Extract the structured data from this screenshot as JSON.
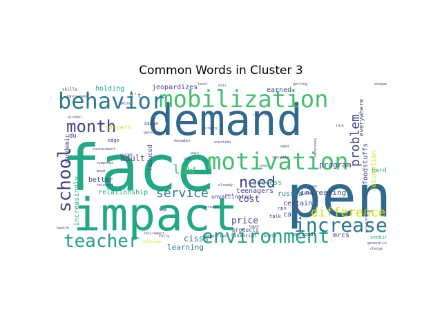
{
  "figure": {
    "title": "Common Words in Cluster 3"
  },
  "palette": {
    "navy": "#414487",
    "blue": "#2a788e",
    "teal": "#22a884",
    "green": "#44bf70",
    "lime": "#7ad151",
    "yellow": "#d2e21b",
    "purple": "#482878",
    "dark": "#440154",
    "mid": "#31688e",
    "aqua": "#1f9e89"
  },
  "words": [
    {
      "text": "face",
      "color": "teal",
      "size": 92,
      "rotate": 0
    },
    {
      "text": "demand",
      "color": "mid",
      "size": 62,
      "rotate": 0
    },
    {
      "text": "impact",
      "color": "teal",
      "size": 66,
      "rotate": 0
    },
    {
      "text": "pen",
      "color": "mid",
      "size": 84,
      "rotate": 0
    },
    {
      "text": "mobilization",
      "color": "green",
      "size": 34,
      "rotate": 0
    },
    {
      "text": "behavior",
      "color": "blue",
      "size": 32,
      "rotate": 0
    },
    {
      "text": "motivation",
      "color": "green",
      "size": 34,
      "rotate": 0
    },
    {
      "text": "environment",
      "color": "teal",
      "size": 28,
      "rotate": 0
    },
    {
      "text": "increase",
      "color": "blue",
      "size": 28,
      "rotate": 0
    },
    {
      "text": "teacher",
      "color": "aqua",
      "size": 26,
      "rotate": 0
    },
    {
      "text": "school",
      "color": "navy",
      "size": 26,
      "rotate": -90
    },
    {
      "text": "month",
      "color": "navy",
      "size": 24,
      "rotate": 0
    },
    {
      "text": "need",
      "color": "navy",
      "size": 22,
      "rotate": 0
    },
    {
      "text": "difference",
      "color": "yellow",
      "size": 18,
      "rotate": 0
    },
    {
      "text": "problem",
      "color": "navy",
      "size": 18,
      "rotate": -90
    },
    {
      "text": "service",
      "color": "blue",
      "size": 18,
      "rotate": 0
    },
    {
      "text": "low",
      "color": "green",
      "size": 18,
      "rotate": 0
    },
    {
      "text": "cost",
      "color": "navy",
      "size": 13,
      "rotate": 0
    },
    {
      "text": "price",
      "color": "navy",
      "size": 13,
      "rotate": 0
    },
    {
      "text": "cisss",
      "color": "blue",
      "size": 12,
      "rotate": 0
    },
    {
      "text": "learning",
      "color": "blue",
      "size": 11,
      "rotate": 0
    },
    {
      "text": "program",
      "color": "navy",
      "size": 11,
      "rotate": 0
    },
    {
      "text": "increasing",
      "color": "navy",
      "size": 11,
      "rotate": 0
    },
    {
      "text": "certain",
      "color": "navy",
      "size": 10,
      "rotate": 0
    },
    {
      "text": "russia",
      "color": "blue",
      "size": 10,
      "rotate": 0
    },
    {
      "text": "teenagers",
      "color": "navy",
      "size": 10,
      "rotate": 0
    },
    {
      "text": "success",
      "color": "teal",
      "size": 10,
      "rotate": 0
    },
    {
      "text": "adult",
      "color": "navy",
      "size": 12,
      "rotate": 0
    },
    {
      "text": "better",
      "color": "navy",
      "size": 10,
      "rotate": 0
    },
    {
      "text": "relationship",
      "color": "teal",
      "size": 10,
      "rotate": 0
    },
    {
      "text": "holding",
      "color": "teal",
      "size": 10,
      "rotate": 0
    },
    {
      "text": "jeopardizes",
      "color": "navy",
      "size": 10,
      "rotate": 0
    },
    {
      "text": "earned",
      "color": "navy",
      "size": 10,
      "rotate": 0
    },
    {
      "text": "mrcs",
      "color": "navy",
      "size": 10,
      "rotate": 0
    },
    {
      "text": "resumption",
      "color": "yellow",
      "size": 10,
      "rotate": -90
    },
    {
      "text": "foodstuffs",
      "color": "navy",
      "size": 10,
      "rotate": -90
    },
    {
      "text": "everywhere",
      "color": "navy",
      "size": 9,
      "rotate": -90
    },
    {
      "text": "harder",
      "color": "teal",
      "size": 9,
      "rotate": 0
    },
    {
      "text": "increasingly",
      "color": "teal",
      "size": 10,
      "rotate": -90
    },
    {
      "text": "pandemic",
      "color": "navy",
      "size": 9,
      "rotate": -90
    },
    {
      "text": "concern",
      "color": "yellow",
      "size": 9,
      "rotate": 0
    },
    {
      "text": "reduced",
      "color": "navy",
      "size": 9,
      "rotate": -90
    },
    {
      "text": "unvaccinated",
      "color": "navy",
      "size": 8,
      "rotate": 0
    },
    {
      "text": "products",
      "color": "navy",
      "size": 8,
      "rotate": 0
    },
    {
      "text": "talk",
      "color": "navy",
      "size": 7,
      "rotate": 0
    },
    {
      "text": "personal",
      "color": "navy",
      "size": 7,
      "rotate": 0
    },
    {
      "text": "seeking",
      "color": "teal",
      "size": 7,
      "rotate": 0
    },
    {
      "text": "financial",
      "color": "navy",
      "size": 7,
      "rotate": 0
    },
    {
      "text": "expertise",
      "color": "navy",
      "size": 6,
      "rotate": 0
    },
    {
      "text": "sûreté",
      "color": "navy",
      "size": 6,
      "rotate": 0
    },
    {
      "text": "npo",
      "color": "navy",
      "size": 7,
      "rotate": 0
    },
    {
      "text": "ca",
      "color": "navy",
      "size": 10,
      "rotate": 0
    },
    {
      "text": "du",
      "color": "navy",
      "size": 9,
      "rotate": 0
    },
    {
      "text": "n't",
      "color": "navy",
      "size": 9,
      "rotate": 0
    },
    {
      "text": "image",
      "color": "navy",
      "size": 7,
      "rotate": 0
    },
    {
      "text": "edge",
      "color": "navy",
      "size": 7,
      "rotate": 0
    },
    {
      "text": "skills",
      "color": "navy",
      "size": 6,
      "rotate": 0
    },
    {
      "text": "improvement",
      "color": "navy",
      "size": 5,
      "rotate": 0
    },
    {
      "text": "taking",
      "color": "navy",
      "size": 5,
      "rotate": 0
    },
    {
      "text": "alcohol",
      "color": "navy",
      "size": 5,
      "rotate": 0
    },
    {
      "text": "gasoline",
      "color": "navy",
      "size": 5,
      "rotate": 0
    },
    {
      "text": "containment",
      "color": "navy",
      "size": 5,
      "rotate": 0
    },
    {
      "text": "europe",
      "color": "navy",
      "size": 5,
      "rotate": 0
    },
    {
      "text": "symptoms",
      "color": "navy",
      "size": 5,
      "rotate": 0
    },
    {
      "text": "mood",
      "color": "navy",
      "size": 5,
      "rotate": 0
    },
    {
      "text": "relevant",
      "color": "navy",
      "size": 5,
      "rotate": 0
    },
    {
      "text": "retirement",
      "color": "navy",
      "size": 5,
      "rotate": 0
    },
    {
      "text": "health",
      "color": "navy",
      "size": 5,
      "rotate": 0
    },
    {
      "text": "challenge",
      "color": "yellow",
      "size": 5,
      "rotate": 0
    },
    {
      "text": "fully",
      "color": "navy",
      "size": 5,
      "rotate": 0
    },
    {
      "text": "high",
      "color": "navy",
      "size": 5,
      "rotate": 0
    },
    {
      "text": "various",
      "color": "navy",
      "size": 5,
      "rotate": 0
    },
    {
      "text": "already",
      "color": "navy",
      "size": 5,
      "rotate": 0
    },
    {
      "text": "part",
      "color": "navy",
      "size": 5,
      "rotate": 0
    },
    {
      "text": "taken",
      "color": "navy",
      "size": 5,
      "rotate": 0
    },
    {
      "text": "ones",
      "color": "navy",
      "size": 5,
      "rotate": 0
    },
    {
      "text": "secondary",
      "color": "navy",
      "size": 5,
      "rotate": -90
    },
    {
      "text": "fear",
      "color": "navy",
      "size": 5,
      "rotate": 0
    },
    {
      "text": "violence",
      "color": "navy",
      "size": 5,
      "rotate": 0
    },
    {
      "text": "covid",
      "color": "navy",
      "size": 5,
      "rotate": 0
    },
    {
      "text": "according",
      "color": "navy",
      "size": 5,
      "rotate": -90
    },
    {
      "text": "generalized",
      "color": "navy",
      "size": 5,
      "rotate": 0
    },
    {
      "text": "charge",
      "color": "navy",
      "size": 5,
      "rotate": 0
    },
    {
      "text": "impatient",
      "color": "navy",
      "size": 5,
      "rotate": 0
    },
    {
      "text": "lack",
      "color": "navy",
      "size": 5,
      "rotate": 0
    },
    {
      "text": "getting",
      "color": "navy",
      "size": 5,
      "rotate": 0
    },
    {
      "text": "dropped",
      "color": "navy",
      "size": 5,
      "rotate": 0
    },
    {
      "text": "screens",
      "color": "navy",
      "size": 5,
      "rotate": 0
    },
    {
      "text": "overtime",
      "color": "navy",
      "size": 5,
      "rotate": 0
    },
    {
      "text": "december",
      "color": "navy",
      "size": 5,
      "rotate": 0
    },
    {
      "text": "wait",
      "color": "navy",
      "size": 5,
      "rotate": 0
    },
    {
      "text": "use",
      "color": "navy",
      "size": 6,
      "rotate": 0
    },
    {
      "text": "level",
      "color": "navy",
      "size": 5,
      "rotate": 0
    },
    {
      "text": "axis",
      "color": "navy",
      "size": 5,
      "rotate": 0
    },
    {
      "text": "aged",
      "color": "navy",
      "size": 5,
      "rotate": 0
    },
    {
      "text": "security",
      "color": "navy",
      "size": 5,
      "rotate": 0
    },
    {
      "text": "girls",
      "color": "navy",
      "size": 5,
      "rotate": -90
    }
  ]
}
